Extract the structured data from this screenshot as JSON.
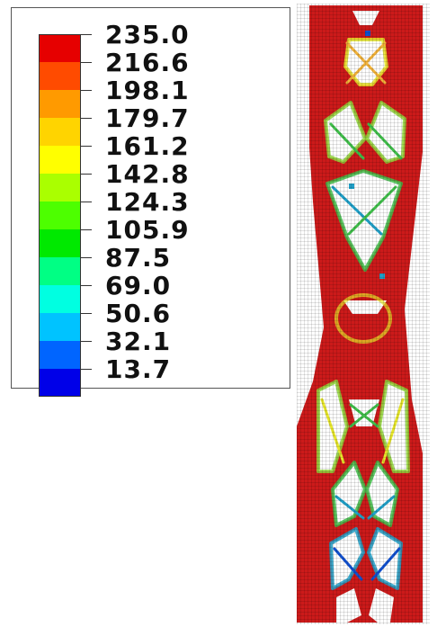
{
  "legend": {
    "labels": [
      "235.0",
      "216.6",
      "198.1",
      "179.7",
      "161.2",
      "142.8",
      "124.3",
      "105.9",
      "87.5",
      "69.0",
      "50.6",
      "32.1",
      "13.7"
    ],
    "colors": [
      "#e60000",
      "#ff4b00",
      "#ff9a00",
      "#ffd400",
      "#ffff00",
      "#aaff00",
      "#4dff00",
      "#00e900",
      "#00ff84",
      "#00ffe1",
      "#00c3ff",
      "#0065ff",
      "#0000e8"
    ]
  },
  "model": {
    "solid_color": "#cc1a1a",
    "edge_colors": [
      "#e85a1a",
      "#f2b33a",
      "#e6e62a",
      "#8fd63a",
      "#3fbf4a",
      "#1fa0c8",
      "#1050d0"
    ]
  }
}
